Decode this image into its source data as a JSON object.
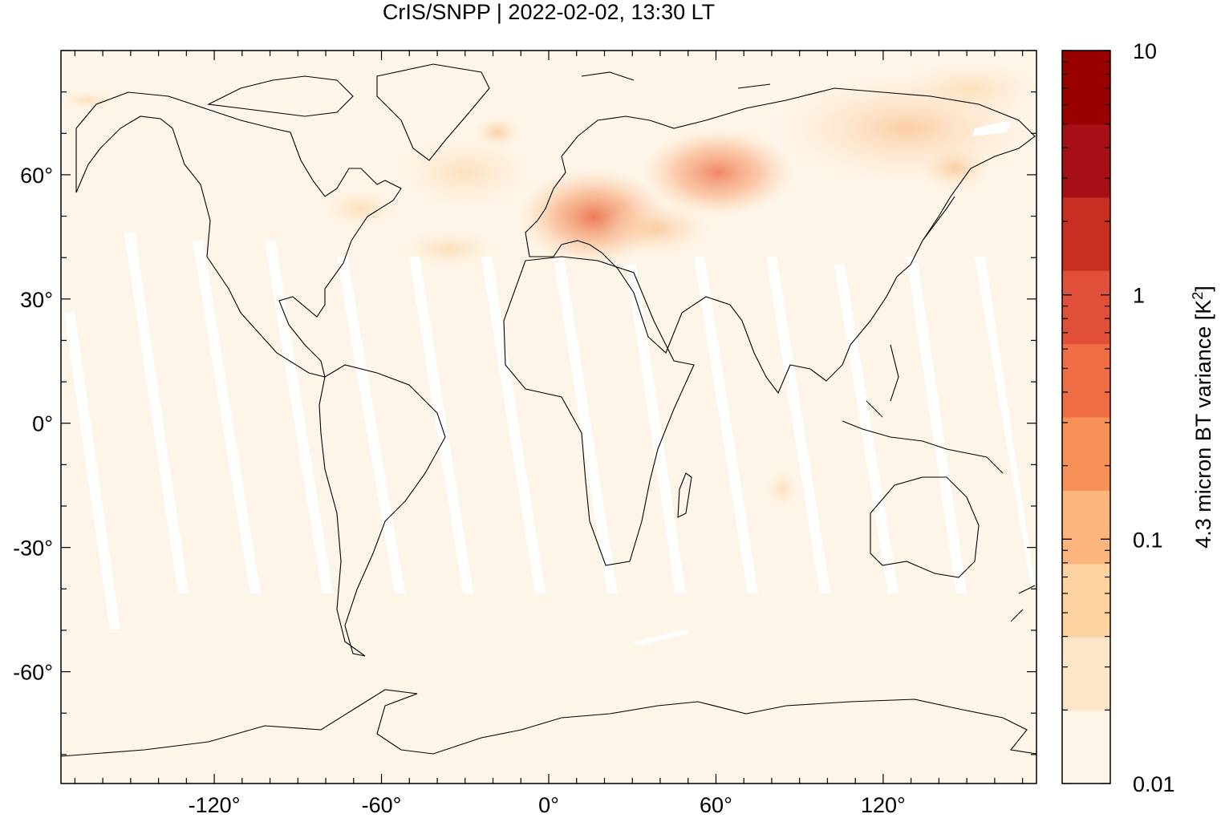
{
  "title": "CrIS/SNPP | 2022-02-02, 13:30 LT",
  "map": {
    "extent": {
      "lon": [
        -175,
        175
      ],
      "lat": [
        -87,
        90
      ]
    },
    "x_ticks": [
      {
        "value": -120,
        "label": "-120°"
      },
      {
        "value": -60,
        "label": "-60°"
      },
      {
        "value": 0,
        "label": "0°"
      },
      {
        "value": 60,
        "label": "60°"
      },
      {
        "value": 120,
        "label": "120°"
      }
    ],
    "y_ticks": [
      {
        "value": 60,
        "label": "60°"
      },
      {
        "value": 30,
        "label": "30°"
      },
      {
        "value": 0,
        "label": "0°"
      },
      {
        "value": -30,
        "label": "-30°"
      },
      {
        "value": -60,
        "label": "-60°"
      }
    ],
    "background_color": "#fef5e9",
    "gap_color": "#ffffff"
  },
  "colorbar": {
    "label": "4.3 micron BT variance [K",
    "label_sup": "2",
    "label_close": "]",
    "scale": "log",
    "range": [
      0.01,
      10
    ],
    "tick_labels": [
      {
        "value": 10,
        "label": "10"
      },
      {
        "value": 1,
        "label": "1"
      },
      {
        "value": 0.1,
        "label": "0.1"
      },
      {
        "value": 0.01,
        "label": "0.01"
      }
    ],
    "colors": [
      "#fef5e9",
      "#fde7c8",
      "#fcd2a1",
      "#fcb57c",
      "#f89158",
      "#f06c45",
      "#e04f39",
      "#c52e20",
      "#a50f15",
      "#990000"
    ]
  }
}
